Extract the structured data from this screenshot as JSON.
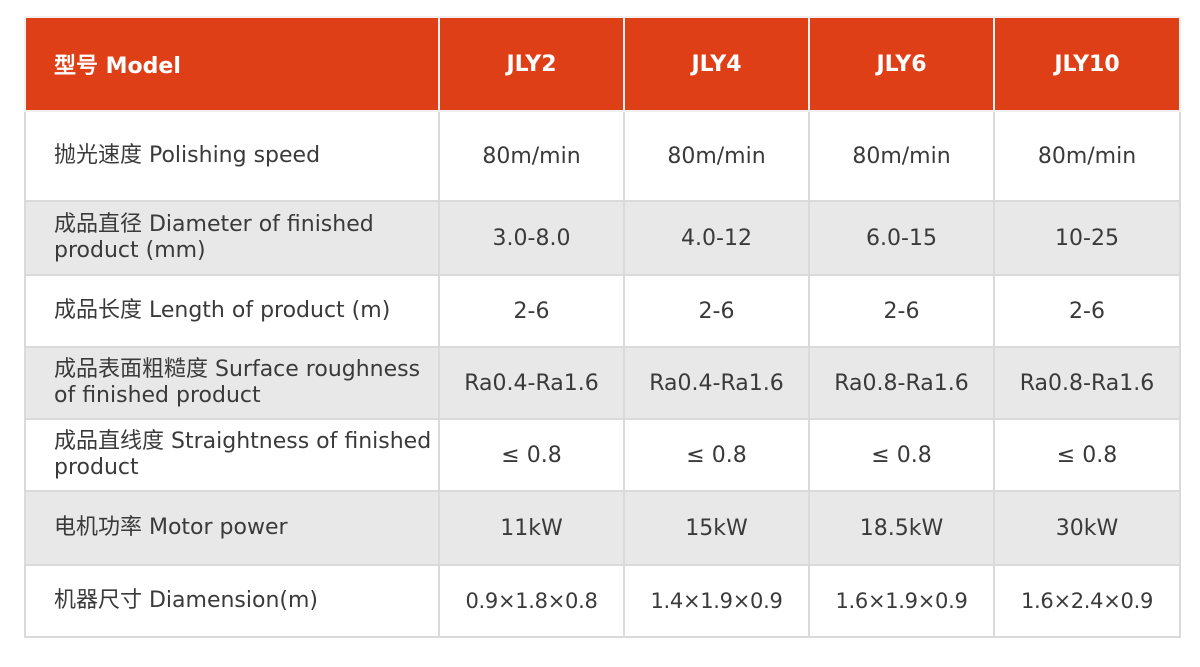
{
  "table": {
    "header": {
      "label": "型号 Model",
      "models": [
        "JLY2",
        "JLY4",
        "JLY6",
        "JLY10"
      ]
    },
    "rows": [
      {
        "label": "抛光速度 Polishing speed",
        "values": [
          "80m/min",
          "80m/min",
          "80m/min",
          "80m/min"
        ]
      },
      {
        "label": "成品直径 Diameter of finished product (mm)",
        "values": [
          "3.0-8.0",
          "4.0-12",
          "6.0-15",
          "10-25"
        ]
      },
      {
        "label": "成品长度 Length of product (m)",
        "values": [
          "2-6",
          "2-6",
          "2-6",
          "2-6"
        ]
      },
      {
        "label": "成品表面粗糙度 Surface roughness of finished product",
        "values": [
          "Ra0.4-Ra1.6",
          "Ra0.4-Ra1.6",
          "Ra0.8-Ra1.6",
          "Ra0.8-Ra1.6"
        ]
      },
      {
        "label": "成品直线度 Straightness of finished product",
        "values": [
          "≤ 0.8",
          "≤ 0.8",
          "≤ 0.8",
          "≤ 0.8"
        ]
      },
      {
        "label": "电机功率 Motor power",
        "values": [
          "11kW",
          "15kW",
          "18.5kW",
          "30kW"
        ]
      },
      {
        "label": "机器尺寸 Diamension(m)",
        "values": [
          "0.9×1.8×0.8",
          "1.4×1.9×0.9",
          "1.6×1.9×0.9",
          "1.6×2.4×0.9"
        ]
      }
    ]
  },
  "colors": {
    "header_background": "#df3f16",
    "header_text": "#ffffff",
    "row_alternate": "#e8e8e8",
    "row_base": "#ffffff",
    "body_text": "#3a3a3a",
    "border": "#dadada"
  }
}
